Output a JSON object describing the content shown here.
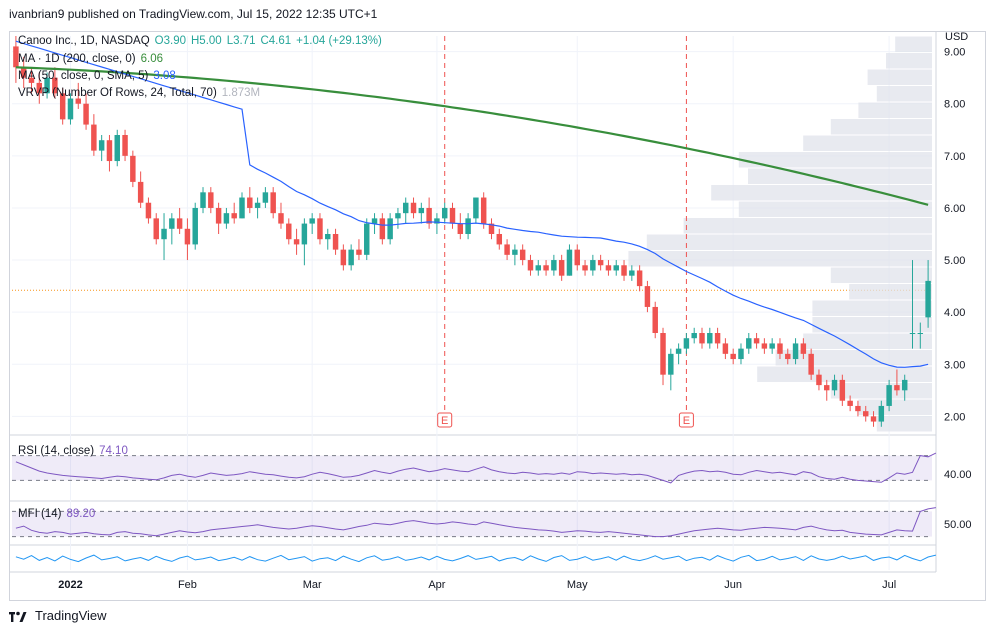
{
  "header": {
    "attribution": "ivanbrian9 published on TradingView.com, Jul 15, 2022 12:35 UTC+1"
  },
  "footer": {
    "brand": "TradingView"
  },
  "colors": {
    "up": "#26a69a",
    "down": "#ef5350",
    "ma200": "#388e3c",
    "ma50": "#2962ff",
    "rsi": "#7e57c2",
    "mfi": "#7e57c2",
    "osc": "#2196f3",
    "vrvp": "#b2b5be"
  },
  "chart_data": [
    {
      "type": "candlestick",
      "title": "Canoo Inc., 1D, NASDAQ",
      "ohlc_label": {
        "o": "O3.90",
        "h": "H5.00",
        "l": "L3.71",
        "c": "C4.61",
        "chg": "+1.04 (+29.13%)"
      },
      "currency": "USD",
      "ylim": [
        1.7,
        9.3
      ],
      "y_ticks": [
        "9.00",
        "8.00",
        "7.00",
        "6.00",
        "5.00",
        "4.00",
        "3.00",
        "2.00"
      ],
      "x_ticks": [
        "2022",
        "Feb",
        "Mar",
        "Apr",
        "May",
        "Jun",
        "Jul"
      ],
      "candles": [
        [
          9.1,
          9.3,
          8.4,
          8.7
        ],
        [
          8.7,
          8.9,
          8.3,
          8.5
        ],
        [
          8.5,
          8.7,
          8.2,
          8.4
        ],
        [
          8.4,
          8.6,
          8.0,
          8.2
        ],
        [
          8.2,
          8.6,
          8.1,
          8.5
        ],
        [
          8.5,
          8.7,
          8.1,
          8.2
        ],
        [
          8.2,
          8.3,
          7.6,
          7.7
        ],
        [
          7.7,
          8.2,
          7.6,
          8.1
        ],
        [
          8.1,
          8.4,
          7.9,
          8.0
        ],
        [
          8.0,
          8.2,
          7.5,
          7.6
        ],
        [
          7.6,
          7.8,
          7.0,
          7.1
        ],
        [
          7.1,
          7.4,
          6.9,
          7.3
        ],
        [
          7.3,
          7.4,
          6.7,
          6.9
        ],
        [
          6.9,
          7.5,
          6.8,
          7.4
        ],
        [
          7.4,
          7.5,
          6.9,
          7.0
        ],
        [
          7.0,
          7.1,
          6.4,
          6.5
        ],
        [
          6.5,
          6.7,
          6.0,
          6.1
        ],
        [
          6.1,
          6.2,
          5.7,
          5.8
        ],
        [
          5.8,
          5.9,
          5.3,
          5.4
        ],
        [
          5.4,
          5.9,
          5.0,
          5.6
        ],
        [
          5.6,
          5.9,
          5.3,
          5.8
        ],
        [
          5.8,
          6.0,
          5.5,
          5.6
        ],
        [
          5.6,
          5.8,
          5.0,
          5.3
        ],
        [
          5.3,
          6.1,
          5.2,
          6.0
        ],
        [
          6.0,
          6.4,
          5.9,
          6.3
        ],
        [
          6.3,
          6.4,
          5.9,
          6.0
        ],
        [
          6.0,
          6.1,
          5.5,
          5.7
        ],
        [
          5.7,
          6.0,
          5.6,
          5.9
        ],
        [
          5.9,
          6.1,
          5.7,
          5.8
        ],
        [
          5.8,
          6.3,
          5.8,
          6.2
        ],
        [
          6.2,
          6.4,
          5.9,
          6.0
        ],
        [
          6.0,
          6.2,
          5.8,
          6.1
        ],
        [
          6.1,
          6.4,
          6.0,
          6.3
        ],
        [
          6.3,
          6.4,
          5.8,
          5.9
        ],
        [
          5.9,
          6.1,
          5.6,
          5.7
        ],
        [
          5.7,
          5.8,
          5.3,
          5.4
        ],
        [
          5.4,
          5.6,
          5.1,
          5.3
        ],
        [
          5.3,
          5.8,
          4.9,
          5.7
        ],
        [
          5.7,
          5.9,
          5.5,
          5.8
        ],
        [
          5.8,
          5.9,
          5.3,
          5.4
        ],
        [
          5.4,
          5.6,
          5.2,
          5.5
        ],
        [
          5.5,
          5.6,
          5.1,
          5.2
        ],
        [
          5.2,
          5.3,
          4.8,
          4.9
        ],
        [
          4.9,
          5.3,
          4.8,
          5.2
        ],
        [
          5.2,
          5.4,
          5.0,
          5.1
        ],
        [
          5.1,
          5.8,
          5.0,
          5.7
        ],
        [
          5.7,
          5.9,
          5.5,
          5.8
        ],
        [
          5.8,
          5.9,
          5.3,
          5.4
        ],
        [
          5.4,
          5.9,
          5.3,
          5.8
        ],
        [
          5.8,
          6.0,
          5.6,
          5.9
        ],
        [
          5.9,
          6.2,
          5.7,
          6.1
        ],
        [
          6.1,
          6.2,
          5.8,
          5.9
        ],
        [
          5.9,
          6.1,
          5.7,
          6.0
        ],
        [
          6.0,
          6.2,
          5.6,
          5.7
        ],
        [
          5.7,
          5.9,
          5.5,
          5.8
        ],
        [
          5.8,
          6.1,
          5.7,
          6.0
        ],
        [
          6.0,
          6.1,
          5.6,
          5.7
        ],
        [
          5.7,
          5.9,
          5.4,
          5.5
        ],
        [
          5.5,
          5.9,
          5.4,
          5.8
        ],
        [
          5.8,
          6.2,
          5.7,
          6.2
        ],
        [
          6.2,
          6.3,
          5.6,
          5.7
        ],
        [
          5.7,
          5.8,
          5.4,
          5.5
        ],
        [
          5.5,
          5.6,
          5.2,
          5.3
        ],
        [
          5.3,
          5.4,
          5.0,
          5.1
        ],
        [
          5.1,
          5.3,
          4.9,
          5.2
        ],
        [
          5.2,
          5.3,
          4.9,
          5.0
        ],
        [
          5.0,
          5.1,
          4.7,
          4.8
        ],
        [
          4.8,
          5.0,
          4.7,
          4.9
        ],
        [
          4.9,
          5.0,
          4.7,
          4.8
        ],
        [
          4.8,
          5.1,
          4.7,
          5.0
        ],
        [
          5.0,
          5.1,
          4.6,
          4.7
        ],
        [
          4.7,
          5.3,
          4.7,
          5.2
        ],
        [
          5.2,
          5.3,
          4.8,
          4.9
        ],
        [
          4.9,
          5.0,
          4.7,
          4.8
        ],
        [
          4.8,
          5.1,
          4.7,
          5.0
        ],
        [
          5.0,
          5.1,
          4.8,
          4.9
        ],
        [
          4.9,
          5.0,
          4.7,
          4.8
        ],
        [
          4.8,
          5.0,
          4.7,
          4.9
        ],
        [
          4.9,
          5.0,
          4.6,
          4.7
        ],
        [
          4.7,
          4.9,
          4.6,
          4.8
        ],
        [
          4.8,
          4.9,
          4.4,
          4.5
        ],
        [
          4.5,
          4.6,
          4.0,
          4.1
        ],
        [
          4.1,
          4.2,
          3.5,
          3.6
        ],
        [
          3.6,
          3.7,
          2.6,
          2.8
        ],
        [
          2.8,
          3.3,
          2.5,
          3.2
        ],
        [
          3.2,
          3.4,
          3.0,
          3.3
        ],
        [
          3.3,
          3.6,
          3.2,
          3.5
        ],
        [
          3.5,
          3.7,
          3.4,
          3.6
        ],
        [
          3.6,
          3.7,
          3.3,
          3.4
        ],
        [
          3.4,
          3.7,
          3.3,
          3.6
        ],
        [
          3.6,
          3.7,
          3.3,
          3.4
        ],
        [
          3.4,
          3.5,
          3.1,
          3.2
        ],
        [
          3.2,
          3.3,
          3.0,
          3.1
        ],
        [
          3.1,
          3.4,
          3.0,
          3.3
        ],
        [
          3.3,
          3.6,
          3.2,
          3.5
        ],
        [
          3.5,
          3.6,
          3.3,
          3.4
        ],
        [
          3.4,
          3.5,
          3.2,
          3.3
        ],
        [
          3.3,
          3.5,
          3.2,
          3.4
        ],
        [
          3.4,
          3.5,
          3.1,
          3.2
        ],
        [
          3.2,
          3.3,
          3.0,
          3.1
        ],
        [
          3.1,
          3.5,
          3.0,
          3.4
        ],
        [
          3.4,
          3.5,
          3.1,
          3.2
        ],
        [
          3.2,
          3.3,
          2.7,
          2.8
        ],
        [
          2.8,
          2.9,
          2.5,
          2.6
        ],
        [
          2.6,
          2.7,
          2.3,
          2.5
        ],
        [
          2.5,
          2.8,
          2.4,
          2.7
        ],
        [
          2.7,
          2.8,
          2.2,
          2.3
        ],
        [
          2.3,
          2.4,
          2.1,
          2.2
        ],
        [
          2.2,
          2.3,
          2.0,
          2.1
        ],
        [
          2.1,
          2.2,
          1.9,
          2.0
        ],
        [
          2.0,
          2.1,
          1.8,
          1.9
        ],
        [
          1.9,
          2.3,
          1.8,
          2.2
        ],
        [
          2.2,
          2.7,
          2.1,
          2.6
        ],
        [
          2.6,
          2.9,
          2.4,
          2.5
        ],
        [
          2.5,
          2.8,
          2.3,
          2.7
        ],
        [
          3.6,
          5.0,
          3.3,
          3.6
        ],
        [
          3.6,
          3.8,
          3.3,
          3.6
        ],
        [
          3.9,
          5.0,
          3.7,
          4.6
        ]
      ],
      "indicators": [
        {
          "name": "MA",
          "label": "MA · 1D (200, close, 0)",
          "value": "6.06",
          "from": 8.7,
          "to": 6.06
        },
        {
          "name": "MA",
          "label": "MA (50, close, 0, SMA, 5)",
          "value": "3.08"
        },
        {
          "name": "VRVP",
          "label": "VRVP (Number Of Rows, 24, Total, 70)",
          "value": "1.873M"
        }
      ],
      "markers": [
        {
          "label": "E",
          "x_index": 55
        },
        {
          "label": "E",
          "x_index": 86
        }
      ],
      "current_price_line": 4.42,
      "volume_profile": [
        0.06,
        0.08,
        0.11,
        0.19,
        0.17,
        0.14,
        0.13,
        0.13,
        0.09,
        0.11,
        0.33,
        0.31,
        0.27,
        0.21,
        0.24,
        0.2,
        0.21,
        0.14,
        0.11,
        0.08,
        0.06,
        0.07,
        0.05,
        0.04
      ]
    },
    {
      "type": "line",
      "title": "RSI (14, close)",
      "value": "74.10",
      "y_ticks": [
        "40.00"
      ],
      "bands": [
        70,
        30
      ],
      "values": [
        60,
        55,
        50,
        45,
        42,
        40,
        38,
        37,
        36,
        35,
        34,
        33,
        35,
        37,
        36,
        34,
        33,
        32,
        31,
        34,
        38,
        40,
        37,
        35,
        38,
        42,
        40,
        38,
        39,
        41,
        44,
        42,
        40,
        39,
        37,
        35,
        34,
        36,
        40,
        43,
        41,
        38,
        35,
        36,
        38,
        42,
        46,
        43,
        41,
        45,
        48,
        50,
        47,
        44,
        46,
        49,
        47,
        45,
        44,
        48,
        52,
        47,
        44,
        42,
        41,
        43,
        42,
        40,
        41,
        40,
        42,
        40,
        44,
        43,
        41,
        42,
        41,
        40,
        41,
        39,
        40,
        38,
        34,
        30,
        26,
        38,
        42,
        45,
        46,
        44,
        45,
        43,
        40,
        39,
        43,
        46,
        44,
        42,
        43,
        41,
        39,
        44,
        42,
        36,
        33,
        32,
        35,
        32,
        30,
        29,
        28,
        27,
        34,
        42,
        40,
        43,
        70,
        68,
        74
      ]
    },
    {
      "type": "line",
      "title": "MFI (14)",
      "value": "89.20",
      "y_ticks": [
        "50.00"
      ],
      "bands": [
        80,
        20
      ],
      "values": [
        40,
        45,
        35,
        30,
        28,
        32,
        30,
        26,
        28,
        30,
        27,
        25,
        24,
        30,
        32,
        28,
        27,
        24,
        22,
        26,
        30,
        34,
        31,
        29,
        32,
        36,
        38,
        40,
        42,
        44,
        46,
        48,
        45,
        42,
        40,
        38,
        40,
        43,
        46,
        44,
        41,
        38,
        36,
        40,
        44,
        47,
        52,
        50,
        48,
        52,
        56,
        58,
        55,
        52,
        50,
        52,
        55,
        53,
        50,
        48,
        55,
        52,
        48,
        45,
        42,
        40,
        38,
        36,
        35,
        33,
        30,
        32,
        34,
        33,
        31,
        30,
        32,
        30,
        28,
        26,
        24,
        22,
        20,
        20,
        22,
        26,
        30,
        34,
        36,
        38,
        40,
        38,
        36,
        35,
        38,
        40,
        42,
        41,
        40,
        38,
        36,
        42,
        45,
        40,
        36,
        34,
        35,
        30,
        28,
        26,
        25,
        24,
        30,
        36,
        34,
        33,
        80,
        86,
        89
      ]
    },
    {
      "type": "line",
      "title": "",
      "values": [
        55,
        45,
        60,
        40,
        52,
        38,
        58,
        44,
        35,
        50,
        62,
        42,
        48,
        55,
        38,
        46,
        52,
        40,
        57,
        44,
        36,
        50,
        58,
        42,
        47,
        54,
        39,
        45,
        53,
        41,
        56,
        43,
        37,
        49,
        61,
        43,
        49,
        56,
        37,
        47,
        51,
        39,
        58,
        45,
        35,
        51,
        59,
        41,
        46,
        55,
        40,
        46,
        54,
        42,
        57,
        44,
        38,
        48,
        60,
        44,
        50,
        57,
        38,
        48,
        52,
        40,
        59,
        46,
        36,
        52,
        60,
        40,
        45,
        56,
        41,
        47,
        55,
        41,
        58,
        45,
        39,
        47,
        59,
        45,
        51,
        58,
        39,
        49,
        53,
        41,
        60,
        47,
        37,
        53,
        61,
        39,
        44,
        57,
        42,
        48,
        56,
        40,
        59,
        46,
        40,
        46,
        58,
        46,
        52,
        59,
        40,
        50,
        54,
        42,
        61,
        48,
        38,
        54,
        62
      ]
    }
  ]
}
